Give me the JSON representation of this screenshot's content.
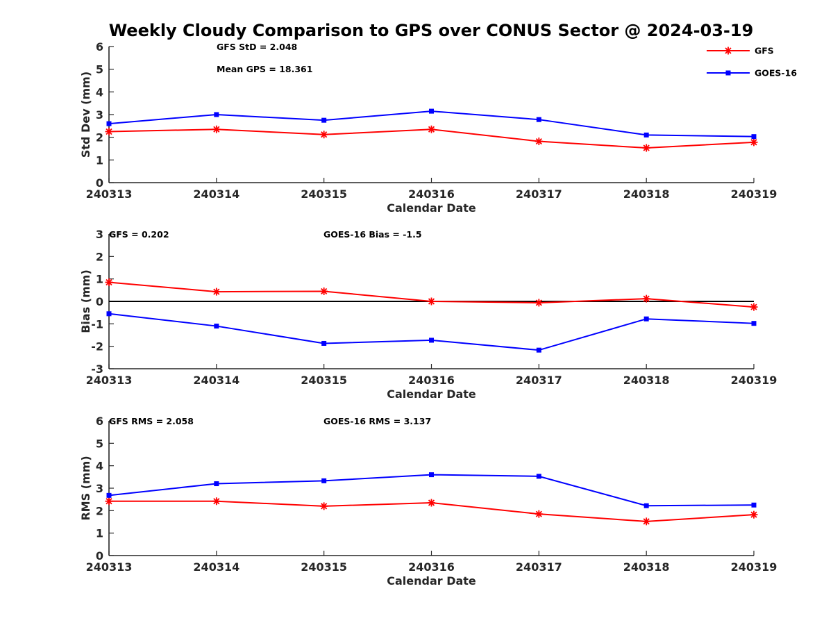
{
  "figure": {
    "title": "Weekly Cloudy Comparison to GPS over CONUS Sector @ 2024-03-19"
  },
  "legend": {
    "placement": "top-right",
    "entries": [
      {
        "name": "GFS",
        "color": "#ff0000",
        "marker": "asterisk"
      },
      {
        "name": "GOES-16",
        "color": "#0000ff",
        "marker": "square"
      }
    ]
  },
  "chart_data": [
    {
      "type": "line",
      "ylabel": "Std Dev (mm)",
      "xlabel": "Calendar Date",
      "categories": [
        "240313",
        "240314",
        "240315",
        "240316",
        "240317",
        "240318",
        "240319"
      ],
      "ylim": [
        0,
        6
      ],
      "yticks": [
        "0",
        "1",
        "2",
        "3",
        "4",
        "5",
        "6"
      ],
      "zero_line": false,
      "annotations": [
        "GFS StD = 2.048",
        "Mean GPS = 18.361"
      ],
      "series": [
        {
          "name": "GFS",
          "color": "#ff0000",
          "values": [
            2.25,
            2.35,
            2.12,
            2.35,
            1.82,
            1.53,
            1.78
          ]
        },
        {
          "name": "GOES-16",
          "color": "#0000ff",
          "values": [
            2.6,
            3.0,
            2.75,
            3.15,
            2.78,
            2.1,
            2.03
          ]
        }
      ]
    },
    {
      "type": "line",
      "ylabel": "Bias (mm)",
      "xlabel": "Calendar Date",
      "categories": [
        "240313",
        "240314",
        "240315",
        "240316",
        "240317",
        "240318",
        "240319"
      ],
      "ylim": [
        -3,
        3
      ],
      "yticks": [
        "-3",
        "-2",
        "-1",
        "0",
        "1",
        "2",
        "3"
      ],
      "zero_line": true,
      "annotations": [
        "GFS = 0.202",
        "GOES-16 Bias  = -1.5"
      ],
      "series": [
        {
          "name": "GFS",
          "color": "#ff0000",
          "values": [
            0.85,
            0.43,
            0.45,
            0.0,
            -0.06,
            0.12,
            -0.25
          ]
        },
        {
          "name": "GOES-16",
          "color": "#0000ff",
          "values": [
            -0.55,
            -1.1,
            -1.87,
            -1.73,
            -2.17,
            -0.78,
            -0.98
          ]
        }
      ]
    },
    {
      "type": "line",
      "ylabel": "RMS (mm)",
      "xlabel": "Calendar Date",
      "categories": [
        "240313",
        "240314",
        "240315",
        "240316",
        "240317",
        "240318",
        "240319"
      ],
      "ylim": [
        0,
        6
      ],
      "yticks": [
        "0",
        "1",
        "2",
        "3",
        "4",
        "5",
        "6"
      ],
      "zero_line": false,
      "annotations": [
        "GFS RMS = 2.058",
        "GOES-16 RMS = 3.137"
      ],
      "series": [
        {
          "name": "GFS",
          "color": "#ff0000",
          "values": [
            2.42,
            2.42,
            2.2,
            2.35,
            1.85,
            1.52,
            1.82
          ]
        },
        {
          "name": "GOES-16",
          "color": "#0000ff",
          "values": [
            2.68,
            3.2,
            3.33,
            3.6,
            3.53,
            2.22,
            2.25
          ]
        }
      ]
    }
  ]
}
